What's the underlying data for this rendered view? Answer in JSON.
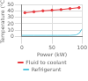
{
  "chart_data": {
    "type": "line",
    "x_label": "Power (kW)",
    "y_label": "Temperature (°C)",
    "xlim": [
      0,
      100
    ],
    "xticks": [
      0,
      50,
      100
    ],
    "ylim": [
      0,
      50
    ],
    "yticks": [
      0,
      10,
      20,
      30,
      40,
      50
    ],
    "grid": true,
    "legend": "bottom",
    "series": [
      {
        "name": "Fluid to coolant",
        "color": "#e8383d",
        "marker": "circle",
        "line_style": "solid",
        "x": [
          5,
          20,
          35,
          50,
          65,
          80,
          95
        ],
        "values": [
          37,
          38.5,
          40,
          41,
          42,
          43.5,
          45
        ]
      },
      {
        "name": "Refrigerant",
        "color": "#5bc8e0",
        "marker": "none",
        "line_style": "solid",
        "x": [
          0,
          20,
          40,
          60,
          80,
          90,
          95,
          100
        ],
        "values": [
          2,
          2,
          2,
          2,
          2,
          2.5,
          5,
          12
        ]
      }
    ]
  }
}
